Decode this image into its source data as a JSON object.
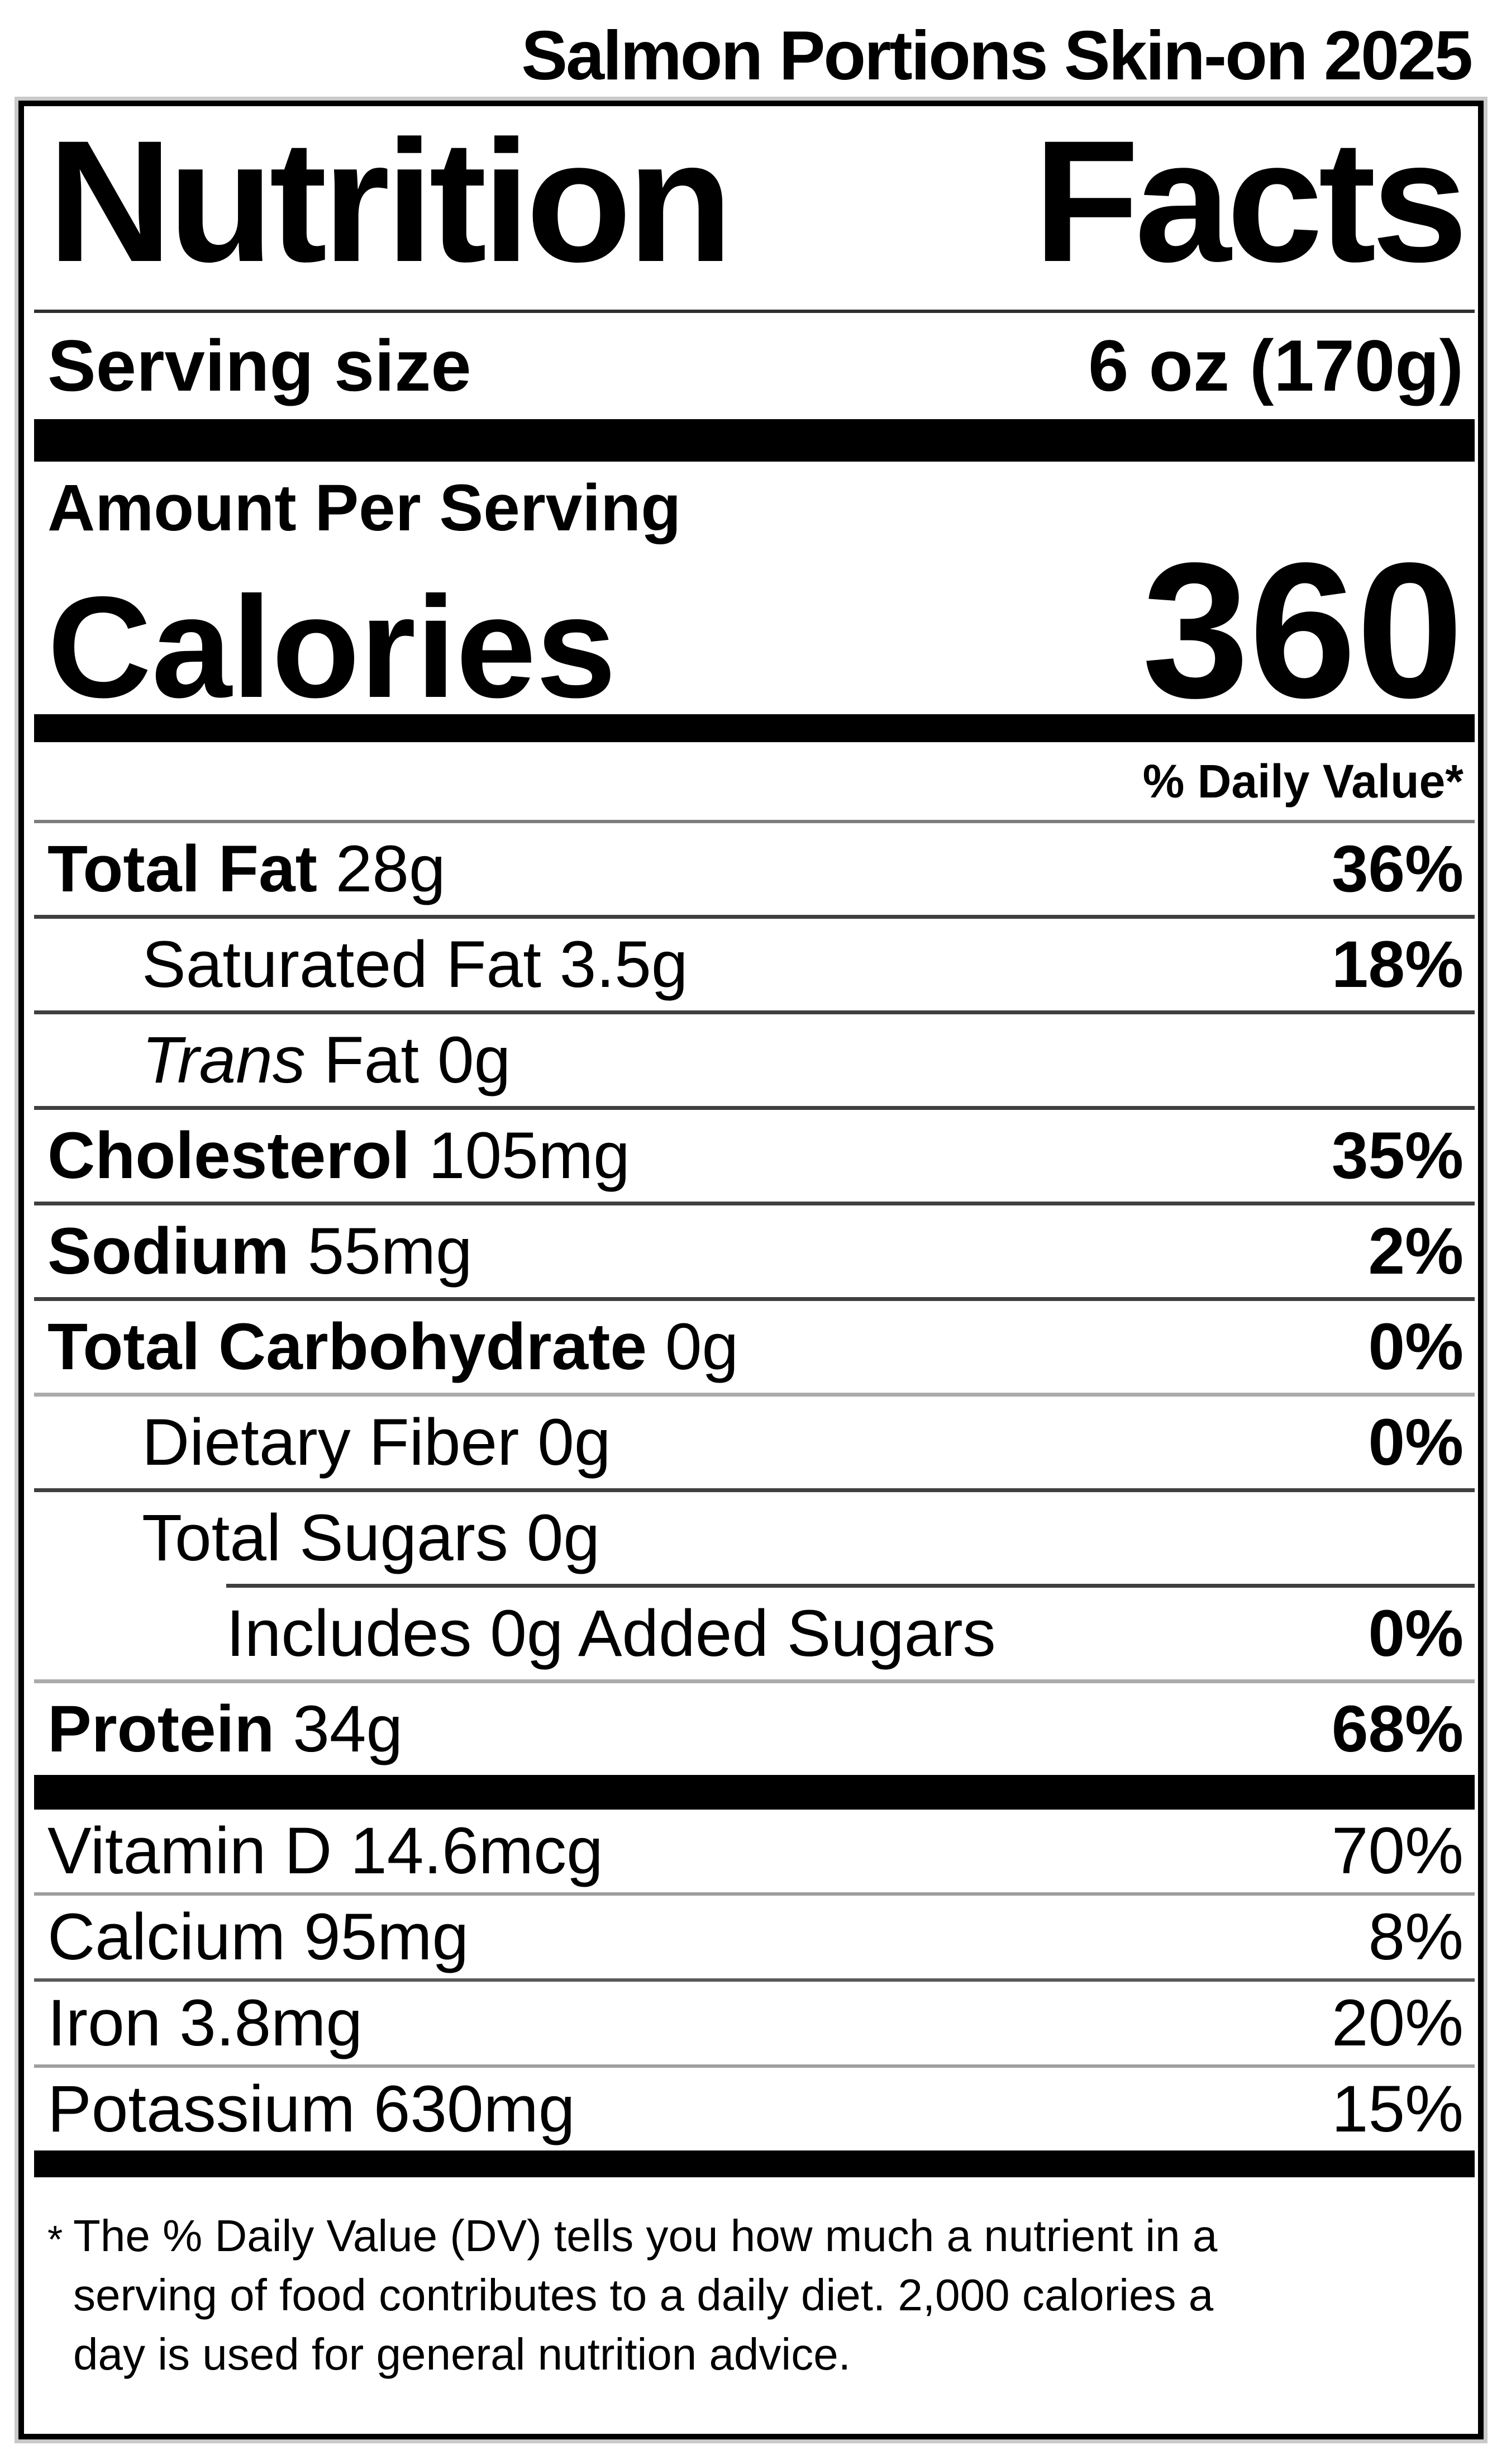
{
  "page_title": "Salmon Portions Skin-on 2025",
  "nutrition_label": {
    "heading": {
      "word1": "Nutrition",
      "word2": "Facts"
    },
    "serving": {
      "label": "Serving size",
      "value": "6 oz (170g)"
    },
    "amount_per_serving": "Amount Per Serving",
    "calories": {
      "label": "Calories",
      "value": "360"
    },
    "daily_value_header": "% Daily Value*",
    "nutrients": [
      {
        "name": "Total Fat",
        "amount": "28g",
        "dv": "36%"
      },
      {
        "name": "Saturated Fat",
        "amount": "3.5g",
        "dv": "18%"
      },
      {
        "name": "Trans",
        "amount": "Fat 0g",
        "dv": ""
      },
      {
        "name": "Cholesterol",
        "amount": "105mg",
        "dv": "35%"
      },
      {
        "name": "Sodium",
        "amount": "55mg",
        "dv": "2%"
      },
      {
        "name": "Total Carbohydrate",
        "amount": "0g",
        "dv": "0%"
      },
      {
        "name": "Dietary Fiber",
        "amount": "0g",
        "dv": "0%"
      },
      {
        "name": "Total Sugars",
        "amount": "0g",
        "dv": ""
      },
      {
        "name": "Includes 0g Added Sugars",
        "amount": "",
        "dv": "0%"
      },
      {
        "name": "Protein",
        "amount": "34g",
        "dv": "68%"
      }
    ],
    "micronutrients": [
      {
        "name": "Vitamin D",
        "amount": "14.6mcg",
        "dv": "70%"
      },
      {
        "name": "Calcium",
        "amount": "95mg",
        "dv": "8%"
      },
      {
        "name": "Iron",
        "amount": "3.8mg",
        "dv": "20%"
      },
      {
        "name": "Potassium",
        "amount": "630mg",
        "dv": "15%"
      }
    ],
    "footnote": {
      "asterisk": "*",
      "line1": "The % Daily Value (DV) tells you how much a nutrient in a",
      "line2": "serving of food contributes to a daily diet. 2,000 calories a",
      "line3": "day is used for general nutrition advice."
    }
  }
}
